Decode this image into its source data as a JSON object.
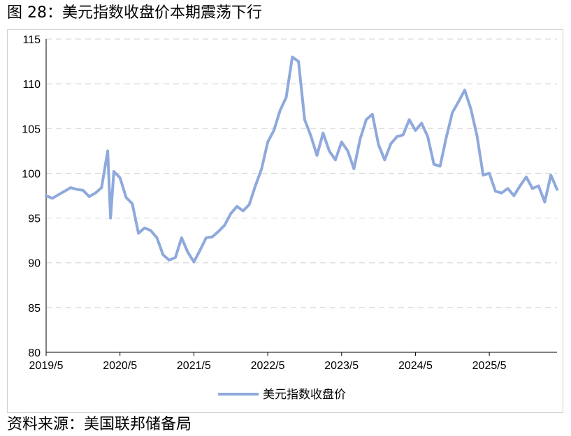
{
  "figure": {
    "title": "图 28：美元指数收盘价本期震荡下行",
    "source": "资料来源：美国联邦储备局"
  },
  "chart_data": {
    "type": "line",
    "title": "",
    "xlabel": "",
    "ylabel": "",
    "ylim": [
      80,
      115
    ],
    "yticks": [
      80,
      85,
      90,
      95,
      100,
      105,
      110,
      115
    ],
    "xlim": [
      "2019-05",
      "2026-04"
    ],
    "xticks": [
      "2019/5",
      "2020/5",
      "2021/5",
      "2022/5",
      "2023/5",
      "2024/5",
      "2025/5"
    ],
    "grid": "horizontal-dashed",
    "legend": "bottom",
    "color": "#8FA9DC",
    "series": [
      {
        "name": "美元指数收盘价",
        "points": [
          [
            "2019-05",
            97.5
          ],
          [
            "2019-06",
            97.2
          ],
          [
            "2019-07",
            97.6
          ],
          [
            "2019-08",
            98.0
          ],
          [
            "2019-09",
            98.4
          ],
          [
            "2019-10",
            98.2
          ],
          [
            "2019-11",
            98.1
          ],
          [
            "2019-12",
            97.4
          ],
          [
            "2020-01",
            97.8
          ],
          [
            "2020-02",
            98.4
          ],
          [
            "2020-03",
            102.5
          ],
          [
            "2020-03-15",
            95.0
          ],
          [
            "2020-04",
            100.2
          ],
          [
            "2020-05",
            99.5
          ],
          [
            "2020-06",
            97.3
          ],
          [
            "2020-07",
            96.6
          ],
          [
            "2020-08",
            93.3
          ],
          [
            "2020-09",
            93.9
          ],
          [
            "2020-10",
            93.6
          ],
          [
            "2020-11",
            92.8
          ],
          [
            "2020-12",
            90.9
          ],
          [
            "2021-01",
            90.3
          ],
          [
            "2021-02",
            90.6
          ],
          [
            "2021-03",
            92.8
          ],
          [
            "2021-04",
            91.2
          ],
          [
            "2021-05",
            90.1
          ],
          [
            "2021-06",
            91.4
          ],
          [
            "2021-07",
            92.8
          ],
          [
            "2021-08",
            92.9
          ],
          [
            "2021-09",
            93.5
          ],
          [
            "2021-10",
            94.2
          ],
          [
            "2021-11",
            95.5
          ],
          [
            "2021-12",
            96.3
          ],
          [
            "2022-01",
            95.8
          ],
          [
            "2022-02",
            96.5
          ],
          [
            "2022-03",
            98.6
          ],
          [
            "2022-04",
            100.5
          ],
          [
            "2022-05",
            103.5
          ],
          [
            "2022-06",
            104.8
          ],
          [
            "2022-07",
            107.0
          ],
          [
            "2022-08",
            108.5
          ],
          [
            "2022-09",
            113.0
          ],
          [
            "2022-10",
            112.5
          ],
          [
            "2022-11",
            106.0
          ],
          [
            "2022-12",
            104.2
          ],
          [
            "2023-01",
            102.0
          ],
          [
            "2023-02",
            104.5
          ],
          [
            "2023-03",
            102.5
          ],
          [
            "2023-04",
            101.5
          ],
          [
            "2023-05",
            103.5
          ],
          [
            "2023-06",
            102.5
          ],
          [
            "2023-07",
            100.5
          ],
          [
            "2023-08",
            103.8
          ],
          [
            "2023-09",
            106.0
          ],
          [
            "2023-10",
            106.6
          ],
          [
            "2023-11",
            103.2
          ],
          [
            "2023-12",
            101.5
          ],
          [
            "2024-01",
            103.3
          ],
          [
            "2024-02",
            104.1
          ],
          [
            "2024-03",
            104.3
          ],
          [
            "2024-04",
            106.0
          ],
          [
            "2024-05",
            104.8
          ],
          [
            "2024-06",
            105.6
          ],
          [
            "2024-07",
            104.1
          ],
          [
            "2024-08",
            101.0
          ],
          [
            "2024-09",
            100.8
          ],
          [
            "2024-10",
            104.0
          ],
          [
            "2024-11",
            106.8
          ],
          [
            "2024-12",
            108.0
          ],
          [
            "2025-01",
            109.3
          ],
          [
            "2025-02",
            107.2
          ],
          [
            "2025-03",
            104.2
          ],
          [
            "2025-04",
            99.8
          ],
          [
            "2025-05",
            100.0
          ],
          [
            "2025-06",
            98.0
          ],
          [
            "2025-07",
            97.8
          ],
          [
            "2025-08",
            98.3
          ],
          [
            "2025-09",
            97.5
          ],
          [
            "2025-10",
            98.6
          ],
          [
            "2025-11",
            99.6
          ],
          [
            "2025-12",
            98.3
          ],
          [
            "2026-01",
            98.6
          ],
          [
            "2026-02",
            96.8
          ],
          [
            "2026-03",
            99.8
          ],
          [
            "2026-04",
            98.2
          ]
        ]
      }
    ]
  }
}
